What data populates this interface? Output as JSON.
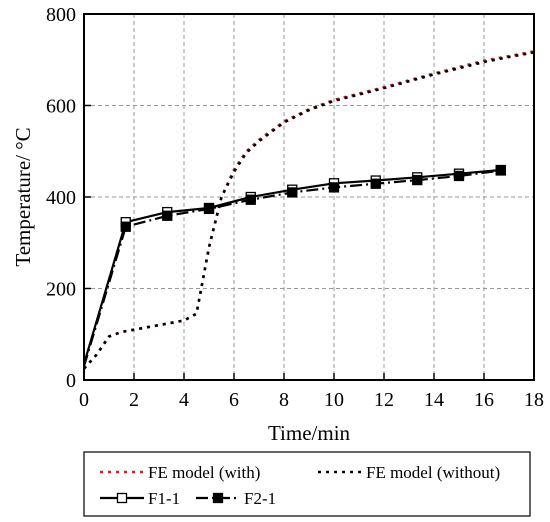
{
  "chart_data": {
    "type": "line",
    "xlabel": "Time/min",
    "ylabel": "Temperature/ °C",
    "xlim": [
      0,
      18
    ],
    "ylim": [
      0,
      800
    ],
    "xticks": [
      0,
      2,
      4,
      6,
      8,
      10,
      12,
      14,
      16,
      18
    ],
    "yticks": [
      0,
      200,
      400,
      600,
      800
    ],
    "grid": true,
    "legend_position": "bottom",
    "series": [
      {
        "name": "FE model (with)",
        "color": "#c0272d",
        "style": "dotted",
        "x": [
          0,
          0.5,
          1.0,
          1.5,
          2.0,
          3.0,
          4.0,
          4.5,
          5.0,
          5.5,
          6.0,
          6.5,
          7.0,
          8.0,
          9.0,
          10.0,
          12.0,
          14.0,
          16.0,
          17.0,
          18.0
        ],
        "y": [
          25,
          55,
          95,
          105,
          110,
          120,
          130,
          145,
          290,
          400,
          460,
          500,
          525,
          565,
          592,
          612,
          640,
          670,
          698,
          708,
          718
        ]
      },
      {
        "name": "FE model (without)",
        "color": "#000000",
        "style": "dotted",
        "x": [
          0,
          0.5,
          1.0,
          1.5,
          2.0,
          3.0,
          4.0,
          4.5,
          5.0,
          5.5,
          6.0,
          6.5,
          7.0,
          8.0,
          9.0,
          10.0,
          12.0,
          14.0,
          16.0,
          17.0,
          18.0
        ],
        "y": [
          25,
          55,
          95,
          105,
          110,
          120,
          130,
          145,
          290,
          400,
          455,
          497,
          522,
          563,
          590,
          610,
          638,
          668,
          695,
          706,
          716
        ]
      },
      {
        "name": "F1-1",
        "color": "#000000",
        "style": "solid",
        "marker": "open-square",
        "x": [
          0,
          1.67,
          3.33,
          5.0,
          6.67,
          8.33,
          10.0,
          11.67,
          13.33,
          15.0,
          16.67
        ],
        "y": [
          35,
          345,
          367,
          376,
          400,
          416,
          430,
          436,
          443,
          451,
          459
        ]
      },
      {
        "name": "F2-1",
        "color": "#000000",
        "style": "dashdot",
        "marker": "filled-square",
        "x": [
          0,
          1.67,
          3.33,
          5.0,
          6.67,
          8.33,
          10.0,
          11.67,
          13.33,
          15.0,
          16.67
        ],
        "y": [
          30,
          335,
          359,
          374,
          394,
          410,
          421,
          429,
          437,
          446,
          458
        ]
      }
    ]
  }
}
